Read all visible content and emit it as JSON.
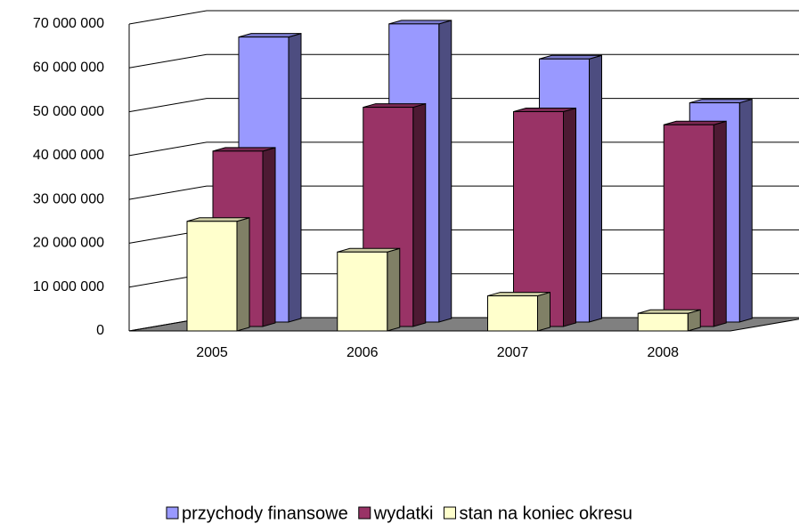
{
  "chart_data": {
    "type": "bar3d",
    "categories": [
      "2005",
      "2006",
      "2007",
      "2008"
    ],
    "series": [
      {
        "name": "przychody finansowe",
        "color": "#9999ff",
        "values": [
          65000000,
          68000000,
          60000000,
          50000000
        ]
      },
      {
        "name": "wydatki",
        "color": "#993366",
        "values": [
          40000000,
          50000000,
          49000000,
          46000000
        ]
      },
      {
        "name": "stan na koniec okresu",
        "color": "#ffffcc",
        "values": [
          25000000,
          18000000,
          8000000,
          4000000
        ]
      }
    ],
    "ylim": [
      0,
      70000000
    ],
    "yticks": [
      {
        "value": 0,
        "label": "0"
      },
      {
        "value": 10000000,
        "label": "10 000 000"
      },
      {
        "value": 20000000,
        "label": "20 000 000"
      },
      {
        "value": 30000000,
        "label": "30 000 000"
      },
      {
        "value": 40000000,
        "label": "40 000 000"
      },
      {
        "value": 50000000,
        "label": "50 000 000"
      },
      {
        "value": 60000000,
        "label": "60 000 000"
      },
      {
        "value": 70000000,
        "label": "70 000 000"
      }
    ],
    "grid": true,
    "legend": "bottom"
  }
}
